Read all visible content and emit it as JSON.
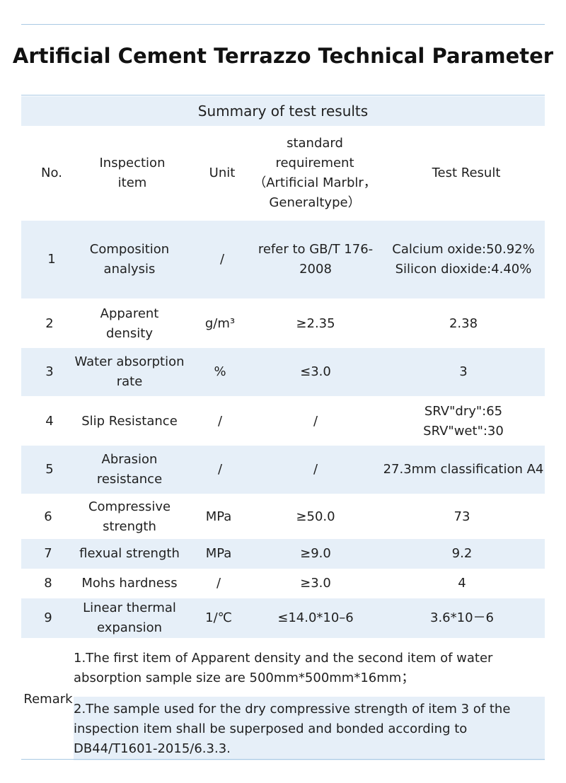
{
  "title": "Artificial Cement Terrazzo Technical Parameter",
  "summary": "Summary of test results",
  "headers": {
    "no": "No.",
    "item": "Inspection item",
    "unit": "Unit",
    "standard": "standard requirement （Artificial Marblr，Generaltype）",
    "result": "Test Result"
  },
  "rows": [
    {
      "no": "1",
      "item": "Composition analysis",
      "unit": "/",
      "standard": "refer to GB/T 176-2008",
      "result": "Calcium oxide:50.92% Silicon dioxide:4.40%"
    },
    {
      "no": "2",
      "item": "Apparent density",
      "unit": "g/m³",
      "standard": "≥2.35",
      "result": "2.38"
    },
    {
      "no": "3",
      "item": "Water absorption rate",
      "unit": "%",
      "standard": "≤3.0",
      "result": "3"
    },
    {
      "no": "4",
      "item": "Slip Resistance",
      "unit": "/",
      "standard": "/",
      "result": "SRV\"dry\":65 SRV\"wet\":30"
    },
    {
      "no": "5",
      "item": "Abrasion resistance",
      "unit": "/",
      "standard": "/",
      "result": "27.3mm classification A4"
    },
    {
      "no": "6",
      "item": "Compressive strength",
      "unit": "MPa",
      "standard": "≥50.0",
      "result": "73"
    },
    {
      "no": "7",
      "item": "flexual strength",
      "unit": "MPa",
      "standard": "≥9.0",
      "result": "9.2"
    },
    {
      "no": "8",
      "item": "Mohs hardness",
      "unit": "/",
      "standard": "≥3.0",
      "result": "4"
    },
    {
      "no": "9",
      "item": "Linear thermal expansion",
      "unit": "1/℃",
      "standard": "≤14.0*10–6",
      "result": "3.6*10－6"
    }
  ],
  "remark": {
    "label": "Remark",
    "notes": [
      "1.The first item of Apparent density and the second item of water absorption sample size are 500mm*500mm*16mm；",
      "2.The sample used for the dry compressive strength of item 3 of the inspection item shall be superposed and bonded according to DB44/T1601-2015/6.3.3."
    ]
  }
}
